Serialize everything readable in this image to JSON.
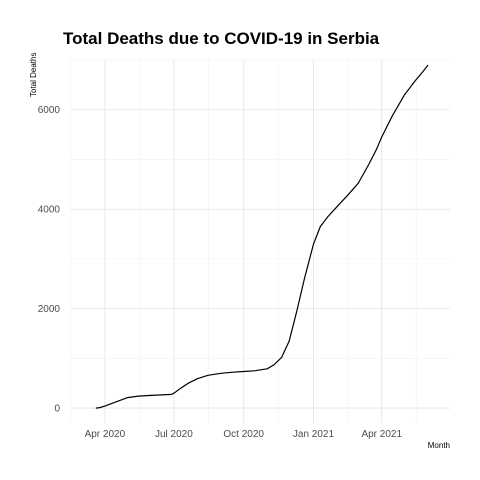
{
  "chart_data": {
    "type": "line",
    "title": "Total Deaths due to COVID-19 in Serbia",
    "xlabel": "Month",
    "ylabel": "Total Deaths",
    "xlim": [
      "2020-02-15",
      "2021-06-30"
    ],
    "ylim": [
      -300,
      7000
    ],
    "x_ticks": [
      "2020-04-01",
      "2020-07-01",
      "2020-10-01",
      "2021-01-01",
      "2021-04-01"
    ],
    "x_tick_labels": [
      "Apr 2020",
      "Jul 2020",
      "Oct 2020",
      "Jan 2021",
      "Apr 2021"
    ],
    "y_ticks": [
      0,
      2000,
      4000,
      6000
    ],
    "y_tick_labels": [
      "0",
      "2000",
      "4000",
      "6000"
    ],
    "grid": true,
    "series": [
      {
        "x": [
          "2020-03-20",
          "2020-03-25",
          "2020-04-01",
          "2020-04-15",
          "2020-05-01",
          "2020-05-15",
          "2020-06-01",
          "2020-06-15",
          "2020-06-28",
          "2020-07-01",
          "2020-07-10",
          "2020-07-20",
          "2020-08-01",
          "2020-08-15",
          "2020-09-01",
          "2020-09-15",
          "2020-10-01",
          "2020-10-15",
          "2020-11-01",
          "2020-11-10",
          "2020-11-20",
          "2020-11-30",
          "2020-12-10",
          "2020-12-20",
          "2021-01-01",
          "2021-01-10",
          "2021-01-20",
          "2021-02-01",
          "2021-02-15",
          "2021-03-01",
          "2021-03-15",
          "2021-03-25",
          "2021-04-01",
          "2021-04-15",
          "2021-05-01",
          "2021-05-15",
          "2021-05-25",
          "2021-06-01"
        ],
        "y": [
          0,
          10,
          40,
          120,
          210,
          240,
          255,
          265,
          275,
          300,
          400,
          500,
          590,
          660,
          700,
          720,
          735,
          750,
          790,
          870,
          1020,
          1350,
          1950,
          2600,
          3300,
          3650,
          3850,
          4050,
          4280,
          4520,
          4900,
          5200,
          5450,
          5880,
          6300,
          6580,
          6760,
          6900
        ]
      }
    ]
  }
}
